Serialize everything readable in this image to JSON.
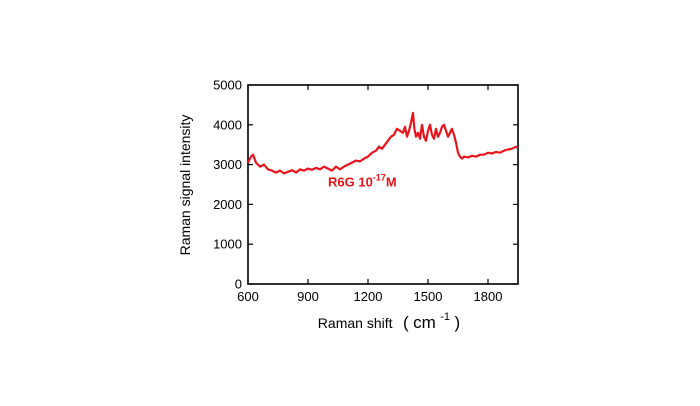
{
  "chart_data": {
    "type": "line",
    "xlabel": "Raman shift",
    "xunit": {
      "open": "(",
      "base": "cm",
      "exp": "-1",
      "close": ")"
    },
    "ylabel": "Raman signal intensity",
    "xlim": [
      600,
      1950
    ],
    "ylim": [
      0,
      5000
    ],
    "xticks": [
      "600",
      "900",
      "1200",
      "1500",
      "1800"
    ],
    "yticks": [
      "0",
      "1000",
      "2000",
      "3000",
      "4000",
      "5000"
    ],
    "grid": false,
    "line_color": "#e8141b",
    "annotation": {
      "base": "R6G 10",
      "exp": "-17",
      "suffix": "M",
      "x": 1000,
      "y": 2450
    },
    "series": [
      {
        "x": [
          600,
          615,
          625,
          640,
          660,
          680,
          700,
          720,
          740,
          760,
          780,
          800,
          820,
          840,
          860,
          880,
          900,
          920,
          940,
          960,
          980,
          1000,
          1020,
          1040,
          1060,
          1080,
          1100,
          1120,
          1140,
          1160,
          1180,
          1200,
          1220,
          1240,
          1255,
          1270,
          1285,
          1300,
          1315,
          1330,
          1345,
          1360,
          1375,
          1385,
          1395,
          1405,
          1415,
          1425,
          1432,
          1440,
          1450,
          1460,
          1470,
          1480,
          1490,
          1500,
          1510,
          1520,
          1530,
          1540,
          1550,
          1560,
          1570,
          1580,
          1590,
          1600,
          1610,
          1620,
          1630,
          1640,
          1650,
          1660,
          1670,
          1680,
          1700,
          1720,
          1740,
          1760,
          1780,
          1800,
          1820,
          1840,
          1860,
          1880,
          1900,
          1920,
          1940,
          1950
        ],
        "values": [
          3050,
          3200,
          3250,
          3050,
          2950,
          3000,
          2880,
          2850,
          2800,
          2850,
          2780,
          2820,
          2860,
          2800,
          2880,
          2850,
          2900,
          2870,
          2920,
          2880,
          2950,
          2900,
          2850,
          2950,
          2880,
          2950,
          3000,
          3050,
          3100,
          3080,
          3150,
          3200,
          3300,
          3350,
          3450,
          3400,
          3500,
          3600,
          3700,
          3750,
          3900,
          3850,
          3800,
          3950,
          3700,
          3850,
          4050,
          4300,
          3900,
          3700,
          3800,
          3650,
          4000,
          3700,
          3600,
          3850,
          4000,
          3750,
          3650,
          3900,
          3700,
          3800,
          3950,
          4000,
          3850,
          3700,
          3800,
          3900,
          3750,
          3550,
          3300,
          3200,
          3150,
          3200,
          3180,
          3220,
          3200,
          3250,
          3250,
          3300,
          3280,
          3320,
          3300,
          3350,
          3380,
          3400,
          3450,
          3420
        ]
      }
    ]
  }
}
